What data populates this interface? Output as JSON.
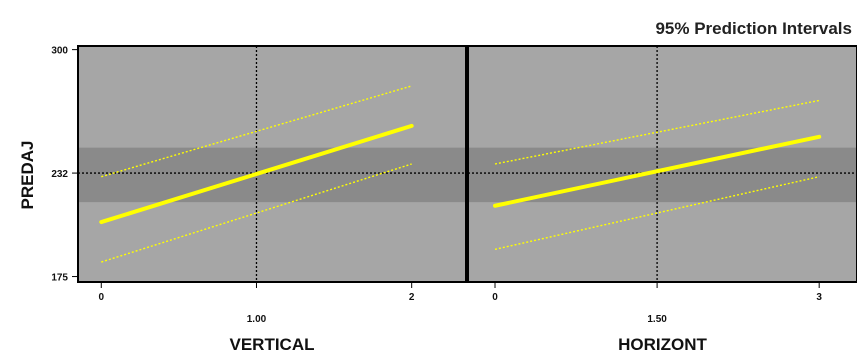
{
  "chart_data": {
    "type": "line",
    "title": "95% Prediction Intervals",
    "ylabel": "PREDAJ",
    "ylim": [
      172,
      302
    ],
    "y_ticks": [
      "175",
      "232",
      "300"
    ],
    "y_reference": 232,
    "band": [
      216,
      246
    ],
    "colors": {
      "plot_bg": "#a6a6a6",
      "band": "#8a8a8a",
      "line": "#ffff00",
      "frame": "#000000"
    },
    "panels": [
      {
        "xlabel": "VERTICAL",
        "xlim": [
          -0.15,
          2.35
        ],
        "x_ticks": [
          "0",
          "1.00",
          "2"
        ],
        "x_reference": 1.0,
        "series": [
          {
            "role": "fit",
            "x": [
              0,
              2
            ],
            "y": [
              205,
              258
            ]
          },
          {
            "role": "upper",
            "x": [
              0,
              2
            ],
            "y": [
              230,
              280
            ]
          },
          {
            "role": "lower",
            "x": [
              0,
              2
            ],
            "y": [
              183,
              237
            ]
          }
        ]
      },
      {
        "xlabel": "HORIZONT",
        "xlim": [
          -0.25,
          3.35
        ],
        "x_ticks": [
          "0",
          "1.50",
          "3"
        ],
        "x_reference": 1.5,
        "series": [
          {
            "role": "fit",
            "x": [
              0,
              3
            ],
            "y": [
              214,
              252
            ]
          },
          {
            "role": "upper",
            "x": [
              0,
              3
            ],
            "y": [
              237,
              272
            ]
          },
          {
            "role": "lower",
            "x": [
              0,
              3
            ],
            "y": [
              190,
              230
            ]
          }
        ]
      }
    ]
  }
}
